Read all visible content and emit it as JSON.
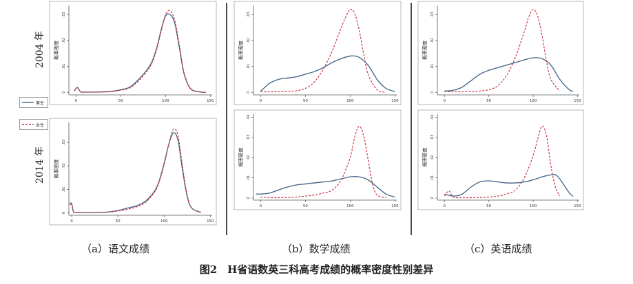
{
  "figure_title": "图2　H省语数英三科高考成绩的概率密度性别差异",
  "row_labels": [
    "2004 年",
    "2014 年"
  ],
  "column_captions": [
    "（a）语文成绩",
    "（b）数学成绩",
    "（c）英语成绩"
  ],
  "legend": [
    {
      "name": "男生",
      "color": "#4a6c8c",
      "style": "solid"
    },
    {
      "name": "女生",
      "color": "#cc3344",
      "style": "dashed"
    }
  ],
  "colors": {
    "male": "#4a6c8c",
    "female": "#cc3344",
    "frame": "#888888"
  },
  "chart_data": [
    {
      "type": "line",
      "subject": "语文成绩",
      "year": "2004 年",
      "ylabel": "概率密度",
      "xlim": [
        -8,
        152
      ],
      "ylim": [
        -0.001,
        0.0335
      ],
      "x_ticks": [
        0,
        50,
        100,
        150
      ],
      "y_ticks": [
        0,
        0.01,
        0.02,
        0.03
      ],
      "series": [
        {
          "name": "男生",
          "x": [
            -2,
            0,
            2,
            5,
            10,
            20,
            30,
            40,
            50,
            60,
            70,
            80,
            85,
            90,
            95,
            100,
            105,
            110,
            115,
            120,
            125,
            130,
            140,
            145
          ],
          "y": [
            0.0005,
            0.0015,
            0.0018,
            0.0002,
            0.0001,
            0.0001,
            0.0002,
            0.0004,
            0.001,
            0.002,
            0.005,
            0.009,
            0.012,
            0.017,
            0.024,
            0.0295,
            0.03,
            0.027,
            0.018,
            0.008,
            0.003,
            0.0008,
            0.0001,
            0
          ]
        },
        {
          "name": "女生",
          "x": [
            -2,
            0,
            2,
            5,
            10,
            20,
            30,
            40,
            50,
            60,
            70,
            80,
            85,
            90,
            95,
            100,
            105,
            110,
            115,
            120,
            125,
            130,
            140,
            145
          ],
          "y": [
            0.0005,
            0.0014,
            0.0017,
            0.0002,
            0.0001,
            0.0001,
            0.0001,
            0.0003,
            0.0008,
            0.0017,
            0.0045,
            0.0085,
            0.0115,
            0.0165,
            0.0235,
            0.03,
            0.0315,
            0.028,
            0.019,
            0.0085,
            0.0032,
            0.0009,
            0.0001,
            0
          ]
        }
      ]
    },
    {
      "type": "line",
      "subject": "数学成绩",
      "year": "2004 年",
      "ylabel": "概率密度",
      "xlim": [
        -8,
        152
      ],
      "ylim": [
        -0.001,
        0.0335
      ],
      "x_ticks": [
        0,
        50,
        100,
        150
      ],
      "y_ticks": [
        0,
        0.01,
        0.02,
        0.03
      ],
      "series": [
        {
          "name": "男生",
          "x": [
            0,
            5,
            10,
            20,
            30,
            40,
            50,
            60,
            70,
            80,
            90,
            100,
            105,
            110,
            120,
            130,
            140,
            150
          ],
          "y": [
            0.0005,
            0.002,
            0.0035,
            0.005,
            0.0055,
            0.006,
            0.007,
            0.008,
            0.0095,
            0.0115,
            0.013,
            0.014,
            0.014,
            0.0135,
            0.0105,
            0.005,
            0.0015,
            0.0003
          ]
        },
        {
          "name": "女生",
          "x": [
            0,
            10,
            20,
            30,
            40,
            50,
            60,
            70,
            80,
            90,
            95,
            100,
            105,
            110,
            115,
            120,
            130,
            140
          ],
          "y": [
            0.0002,
            0.0002,
            0.0002,
            0.0003,
            0.0006,
            0.0015,
            0.004,
            0.009,
            0.016,
            0.025,
            0.029,
            0.032,
            0.0305,
            0.024,
            0.015,
            0.007,
            0.001,
            0.0001
          ]
        }
      ]
    },
    {
      "type": "line",
      "subject": "英语成绩",
      "year": "2004 年",
      "ylabel": "概率密度",
      "xlim": [
        -8,
        152
      ],
      "ylim": [
        -0.001,
        0.0335
      ],
      "x_ticks": [
        0,
        50,
        100,
        150
      ],
      "y_ticks": [
        0,
        0.01,
        0.02,
        0.03
      ],
      "series": [
        {
          "name": "男生",
          "x": [
            0,
            10,
            20,
            30,
            40,
            50,
            60,
            70,
            80,
            90,
            100,
            110,
            120,
            130,
            140,
            145
          ],
          "y": [
            0.0005,
            0.0008,
            0.002,
            0.0045,
            0.007,
            0.0085,
            0.0095,
            0.0105,
            0.0115,
            0.0125,
            0.0133,
            0.013,
            0.0105,
            0.005,
            0.0012,
            0.0003
          ]
        },
        {
          "name": "女生",
          "x": [
            0,
            10,
            20,
            30,
            40,
            50,
            60,
            70,
            80,
            90,
            95,
            100,
            105,
            110,
            115,
            120,
            130
          ],
          "y": [
            0.0003,
            0.0002,
            0.0002,
            0.0003,
            0.0005,
            0.001,
            0.0025,
            0.0065,
            0.0135,
            0.0235,
            0.029,
            0.032,
            0.0295,
            0.022,
            0.012,
            0.005,
            0.0005
          ]
        }
      ]
    },
    {
      "type": "line",
      "subject": "语文成绩",
      "year": "2014 年",
      "ylabel": "概率密度",
      "xlim": [
        -3,
        152
      ],
      "ylim": [
        -0.001,
        0.0385
      ],
      "x_ticks": [
        0,
        50,
        100,
        150
      ],
      "y_ticks": [
        0,
        0.01,
        0.02,
        0.03
      ],
      "series": [
        {
          "name": "男生",
          "x": [
            -2,
            0,
            2,
            5,
            10,
            20,
            30,
            40,
            50,
            60,
            70,
            80,
            90,
            95,
            100,
            105,
            110,
            115,
            120,
            125,
            130,
            140
          ],
          "y": [
            0.004,
            0.004,
            0.0005,
            0.0002,
            0.0001,
            0.0001,
            0.0002,
            0.0004,
            0.001,
            0.002,
            0.003,
            0.005,
            0.0095,
            0.014,
            0.021,
            0.029,
            0.034,
            0.031,
            0.018,
            0.007,
            0.002,
            0.0002
          ]
        },
        {
          "name": "女生",
          "x": [
            -2,
            0,
            2,
            5,
            10,
            20,
            30,
            40,
            50,
            60,
            70,
            80,
            90,
            95,
            100,
            105,
            110,
            115,
            120,
            125,
            130,
            140
          ],
          "y": [
            0.0035,
            0.0035,
            0.0005,
            0.0002,
            0.0001,
            0.0001,
            0.0002,
            0.0003,
            0.0008,
            0.0015,
            0.0025,
            0.0045,
            0.009,
            0.0135,
            0.0205,
            0.029,
            0.0355,
            0.033,
            0.0195,
            0.0075,
            0.002,
            0.0002
          ]
        }
      ]
    },
    {
      "type": "line",
      "subject": "数学成绩",
      "year": "2014 年",
      "ylabel": "概率密度",
      "xlim": [
        -8,
        152
      ],
      "ylim": [
        -0.001,
        0.0415
      ],
      "x_ticks": [
        0,
        50,
        100,
        150
      ],
      "y_ticks": [
        0,
        0.01,
        0.02,
        0.03,
        0.04
      ],
      "series": [
        {
          "name": "男生",
          "x": [
            -5,
            0,
            10,
            20,
            30,
            40,
            50,
            60,
            70,
            80,
            90,
            100,
            110,
            120,
            130,
            140,
            150
          ],
          "y": [
            0.002,
            0.002,
            0.0025,
            0.004,
            0.0055,
            0.0065,
            0.007,
            0.0075,
            0.008,
            0.0085,
            0.0095,
            0.0105,
            0.0105,
            0.009,
            0.0055,
            0.002,
            0.0005
          ]
        },
        {
          "name": "女生",
          "x": [
            0,
            10,
            20,
            30,
            40,
            50,
            60,
            70,
            80,
            90,
            100,
            105,
            110,
            115,
            120,
            125,
            130,
            140
          ],
          "y": [
            0.0005,
            0.0002,
            0.0002,
            0.0003,
            0.0005,
            0.001,
            0.0015,
            0.0025,
            0.004,
            0.009,
            0.02,
            0.03,
            0.0355,
            0.031,
            0.019,
            0.007,
            0.0015,
            0.0002
          ]
        }
      ]
    },
    {
      "type": "line",
      "subject": "英语成绩",
      "year": "2014 年",
      "ylabel": "概率密度",
      "xlim": [
        -8,
        152
      ],
      "ylim": [
        -0.001,
        0.0415
      ],
      "x_ticks": [
        0,
        50,
        100,
        150
      ],
      "y_ticks": [
        0,
        0.01,
        0.02,
        0.03,
        0.04
      ],
      "series": [
        {
          "name": "男生",
          "x": [
            0,
            10,
            20,
            30,
            40,
            50,
            60,
            70,
            80,
            90,
            100,
            110,
            120,
            125,
            130,
            140,
            145
          ],
          "y": [
            0.002,
            0.001,
            0.002,
            0.0055,
            0.008,
            0.0085,
            0.008,
            0.0075,
            0.0075,
            0.008,
            0.009,
            0.0105,
            0.0115,
            0.0115,
            0.0095,
            0.003,
            0.0008
          ]
        },
        {
          "name": "女生",
          "x": [
            0,
            5,
            10,
            20,
            30,
            40,
            50,
            60,
            70,
            80,
            90,
            100,
            105,
            110,
            115,
            120,
            125,
            130
          ],
          "y": [
            0.001,
            0.0035,
            0.0005,
            0.0002,
            0.0002,
            0.0003,
            0.0005,
            0.001,
            0.002,
            0.004,
            0.01,
            0.021,
            0.029,
            0.0355,
            0.031,
            0.016,
            0.0055,
            0.001
          ]
        }
      ]
    }
  ]
}
